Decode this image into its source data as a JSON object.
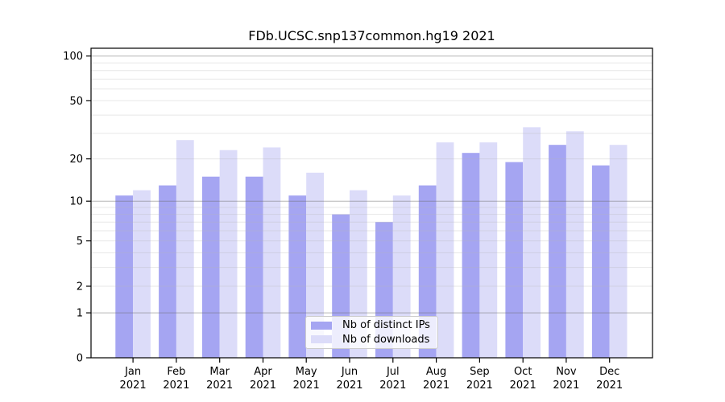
{
  "title": "FDb.UCSC.snp137common.hg19 2021",
  "legend": {
    "items": [
      {
        "label": "Nb of distinct IPs",
        "color": "#a5a5f2"
      },
      {
        "label": "Nb of downloads",
        "color": "#dcdcf9"
      }
    ],
    "position": "bottom-center"
  },
  "chart_data": {
    "type": "bar",
    "title": "FDb.UCSC.snp137common.hg19 2021",
    "categories": [
      "Jan",
      "Feb",
      "Mar",
      "Apr",
      "May",
      "Jun",
      "Jul",
      "Aug",
      "Sep",
      "Oct",
      "Nov",
      "Dec"
    ],
    "year_label": "2021",
    "series": [
      {
        "name": "Nb of distinct IPs",
        "color": "#a5a5f2",
        "values": [
          11,
          13,
          15,
          15,
          11,
          8,
          7,
          13,
          22,
          19,
          25,
          18
        ]
      },
      {
        "name": "Nb of downloads",
        "color": "#dcdcf9",
        "values": [
          12,
          27,
          23,
          24,
          16,
          12,
          11,
          26,
          26,
          33,
          31,
          25
        ]
      }
    ],
    "y_axis": {
      "scale": "log10(value+1)",
      "tick_labels": [
        "100",
        "50",
        "20",
        "10",
        "5",
        "2",
        "1",
        "0"
      ],
      "tick_values": [
        100,
        50,
        20,
        10,
        5,
        2,
        1,
        0
      ],
      "major_gridlines": [
        1,
        10,
        100
      ],
      "minor_gridlines": [
        2,
        3,
        4,
        5,
        6,
        7,
        8,
        9,
        20,
        30,
        40,
        50,
        60,
        70,
        80,
        90
      ],
      "ylim": [
        0,
        113
      ]
    },
    "grid": "horizontal only, decade lines darker, visible through bars",
    "legend_position": "bottom-center"
  },
  "colors": {
    "distinct_ips": "#a5a5f2",
    "downloads": "#dcdcf9",
    "axis": "#000000",
    "grid_major": "#bdbdbd",
    "grid_minor": "#e9e9e9",
    "background": "#ffffff",
    "legend_border": "#cccccc"
  }
}
